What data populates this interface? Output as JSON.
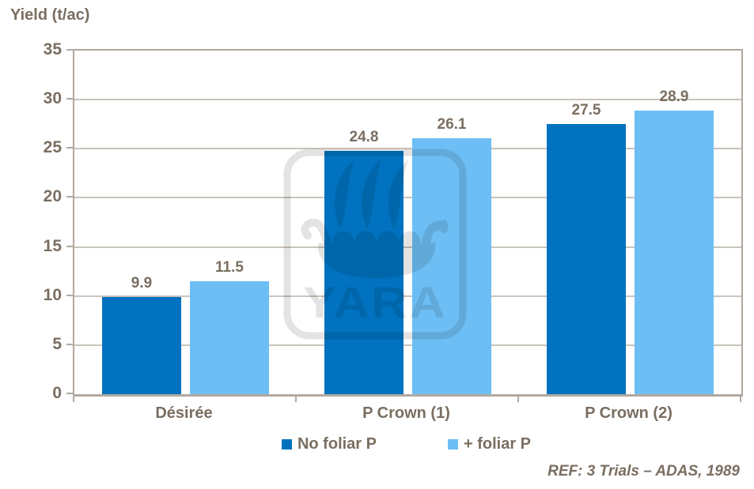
{
  "title": "Yield (t/ac)",
  "ref_note": "REF: 3 Trials – ADAS, 1989",
  "watermark": {
    "label": "YARA"
  },
  "colors": {
    "background": "#FFFFFF",
    "series_dark_blue": "#0072BF",
    "series_light_blue": "#6CBEF4",
    "text_brown": "#7A6E61",
    "axis_line": "#B2A9A0",
    "gridline": "#CBC4BB",
    "watermark_gray": "#E3E3E3"
  },
  "chart_data": {
    "type": "bar",
    "title": "Yield (t/ac)",
    "ylabel": "Yield (t/ac)",
    "categories": [
      "Désirée",
      "P Crown (1)",
      "P Crown (2)"
    ],
    "series": [
      {
        "name": "No foliar P",
        "color": "#0072BF",
        "values": [
          9.9,
          24.8,
          27.5
        ]
      },
      {
        "name": "+ foliar P",
        "color": "#6CBEF4",
        "values": [
          11.5,
          26.1,
          28.9
        ]
      }
    ],
    "ylim": [
      0,
      35
    ],
    "ytick_step": 5,
    "ytick_labels": [
      "0",
      "5",
      "10",
      "15",
      "20",
      "25",
      "30",
      "35"
    ],
    "grid": true,
    "value_labels": true,
    "legend_position": "bottom",
    "annotation": "REF: 3 Trials – ADAS, 1989"
  }
}
